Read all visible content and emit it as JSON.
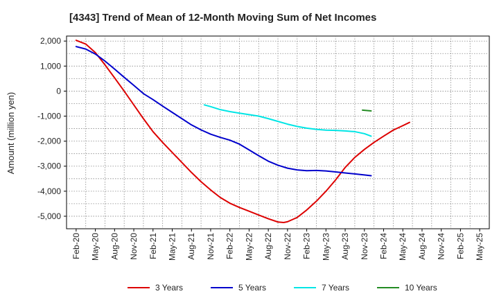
{
  "chart_data": {
    "type": "line",
    "title": "[4343]  Trend of Mean of 12-Month Moving Sum of Net Incomes",
    "xlabel": "",
    "ylabel": "Amount (million yen)",
    "ylim": [
      -5500,
      2200
    ],
    "yticks": [
      2000,
      1000,
      0,
      -1000,
      -2000,
      -3000,
      -4000,
      -5000
    ],
    "ytick_labels": [
      "2,000",
      "1,000",
      "0",
      "-1,000",
      "-2,000",
      "-3,000",
      "-4,000",
      "-5,000"
    ],
    "x_tick_labels": [
      "Feb-20",
      "May-20",
      "Aug-20",
      "Nov-20",
      "Feb-21",
      "May-21",
      "Aug-21",
      "Nov-21",
      "Feb-22",
      "May-22",
      "Aug-22",
      "Nov-22",
      "Feb-23",
      "May-23",
      "Aug-23",
      "Nov-23",
      "Feb-24",
      "May-24",
      "Aug-24",
      "Nov-24",
      "Feb-25",
      "May-25"
    ],
    "x_unit": "quarter index (0 = Feb-20)",
    "grid": true,
    "legend_position": "bottom",
    "series": [
      {
        "name": "3 Years",
        "color": "#dd0000",
        "points": [
          [
            0,
            2030
          ],
          [
            0.5,
            1880
          ],
          [
            1,
            1540
          ],
          [
            1.5,
            1050
          ],
          [
            2,
            530
          ],
          [
            2.5,
            0
          ],
          [
            3,
            -550
          ],
          [
            3.5,
            -1100
          ],
          [
            4,
            -1620
          ],
          [
            4.5,
            -2050
          ],
          [
            5,
            -2450
          ],
          [
            5.5,
            -2850
          ],
          [
            6,
            -3250
          ],
          [
            6.5,
            -3620
          ],
          [
            7,
            -3950
          ],
          [
            7.5,
            -4250
          ],
          [
            8,
            -4480
          ],
          [
            8.5,
            -4650
          ],
          [
            9,
            -4800
          ],
          [
            9.5,
            -4950
          ],
          [
            10,
            -5100
          ],
          [
            10.5,
            -5230
          ],
          [
            10.8,
            -5250
          ],
          [
            11,
            -5220
          ],
          [
            11.5,
            -5050
          ],
          [
            12,
            -4750
          ],
          [
            12.5,
            -4400
          ],
          [
            13,
            -4000
          ],
          [
            13.5,
            -3550
          ],
          [
            14,
            -3050
          ],
          [
            14.5,
            -2650
          ],
          [
            15,
            -2330
          ],
          [
            15.5,
            -2050
          ],
          [
            16,
            -1800
          ],
          [
            16.5,
            -1560
          ],
          [
            17,
            -1380
          ],
          [
            17.35,
            -1250
          ]
        ]
      },
      {
        "name": "5 Years",
        "color": "#0000cc",
        "points": [
          [
            0,
            1780
          ],
          [
            0.5,
            1680
          ],
          [
            1,
            1480
          ],
          [
            1.5,
            1200
          ],
          [
            2,
            880
          ],
          [
            2.5,
            550
          ],
          [
            3,
            230
          ],
          [
            3.5,
            -100
          ],
          [
            4,
            -340
          ],
          [
            4.5,
            -600
          ],
          [
            5,
            -850
          ],
          [
            5.5,
            -1100
          ],
          [
            6,
            -1350
          ],
          [
            6.5,
            -1550
          ],
          [
            7,
            -1720
          ],
          [
            7.5,
            -1850
          ],
          [
            8,
            -1960
          ],
          [
            8.5,
            -2120
          ],
          [
            9,
            -2350
          ],
          [
            9.5,
            -2580
          ],
          [
            10,
            -2800
          ],
          [
            10.5,
            -2960
          ],
          [
            11,
            -3080
          ],
          [
            11.5,
            -3150
          ],
          [
            12,
            -3180
          ],
          [
            12.5,
            -3170
          ],
          [
            13,
            -3190
          ],
          [
            13.5,
            -3230
          ],
          [
            14,
            -3270
          ],
          [
            14.5,
            -3310
          ],
          [
            15,
            -3350
          ],
          [
            15.35,
            -3380
          ]
        ]
      },
      {
        "name": "7 Years",
        "color": "#00e5e5",
        "points": [
          [
            6.67,
            -550
          ],
          [
            7,
            -620
          ],
          [
            7.5,
            -740
          ],
          [
            8,
            -820
          ],
          [
            8.5,
            -880
          ],
          [
            9,
            -940
          ],
          [
            9.5,
            -1000
          ],
          [
            10,
            -1100
          ],
          [
            10.5,
            -1210
          ],
          [
            11,
            -1320
          ],
          [
            11.5,
            -1410
          ],
          [
            12,
            -1480
          ],
          [
            12.5,
            -1530
          ],
          [
            13,
            -1560
          ],
          [
            13.5,
            -1570
          ],
          [
            14,
            -1590
          ],
          [
            14.5,
            -1620
          ],
          [
            15,
            -1700
          ],
          [
            15.35,
            -1800
          ]
        ]
      },
      {
        "name": "10 Years",
        "color": "#228b22",
        "points": [
          [
            14.9,
            -760
          ],
          [
            15.35,
            -790
          ]
        ]
      }
    ]
  }
}
